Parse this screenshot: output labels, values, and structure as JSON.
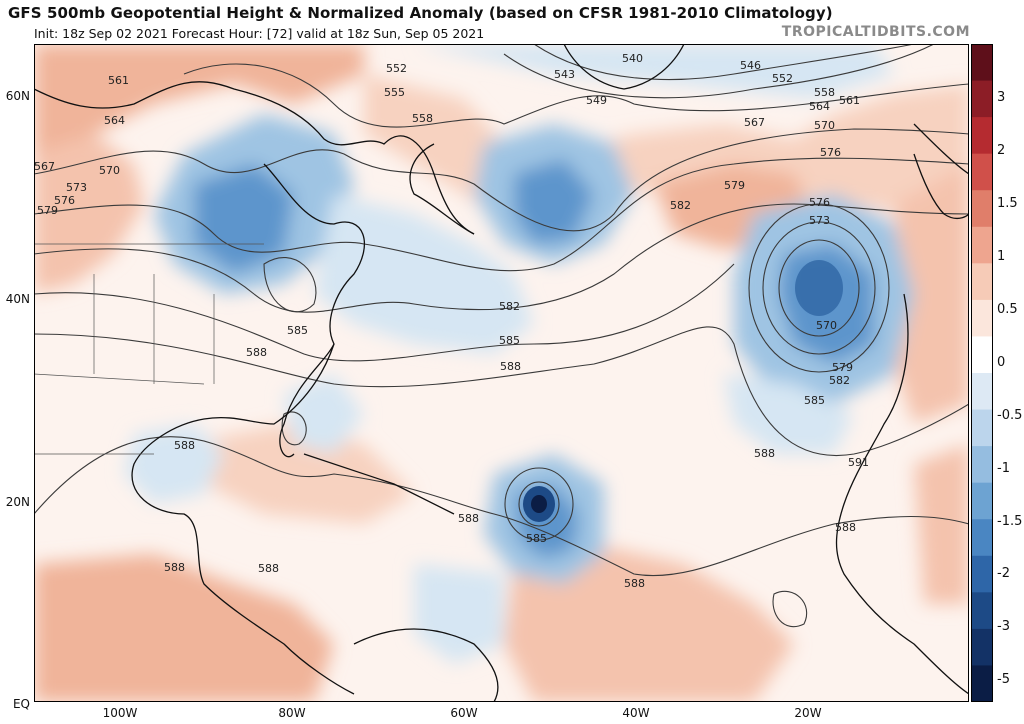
{
  "header": {
    "title": "GFS 500mb Geopotential Height & Normalized Anomaly (based on CFSR 1981-2010 Climatology)",
    "subtitle": "Init: 18z Sep 02 2021   Forecast Hour: [72]   valid at 18z Sun, Sep 05 2021",
    "credit": "TROPICALTIDBITS.COM"
  },
  "axes": {
    "lat_labels": [
      "60N",
      "40N",
      "20N",
      "EQ"
    ],
    "lon_labels": [
      "100W",
      "80W",
      "60W",
      "40W",
      "20W"
    ]
  },
  "colorbar": {
    "labels": [
      "3",
      "2",
      "1.5",
      "1",
      "0.5",
      "0",
      "-0.5",
      "-1",
      "-1.5",
      "-2",
      "-3",
      "-5"
    ],
    "colors": [
      "#5e0f1a",
      "#8c1d26",
      "#b52b30",
      "#d0504a",
      "#e07e6a",
      "#eea58f",
      "#f6cbb7",
      "#fbe6dc",
      "#ffffff",
      "#dde9f4",
      "#bcd5ec",
      "#95bde0",
      "#6da3d2",
      "#4a86c2",
      "#2e66a8",
      "#1d4a86",
      "#133266",
      "#0b1d45"
    ]
  },
  "contour_labels": [
    "540",
    "543",
    "546",
    "549",
    "552",
    "555",
    "558",
    "561",
    "564",
    "567",
    "570",
    "573",
    "576",
    "579",
    "582",
    "585",
    "588",
    "591"
  ],
  "map": {
    "colors": {
      "ocean_neutral": "#fdf3ee",
      "warm_light": "#f7d2c0",
      "warm_mid": "#f0b49a",
      "cool_light": "#d6e6f3",
      "cool_mid": "#9fc4e3",
      "cool_dark": "#5d95cc",
      "cool_deep": "#2a5f9e",
      "contour": "#3a3a3a",
      "coast": "#111111"
    }
  }
}
